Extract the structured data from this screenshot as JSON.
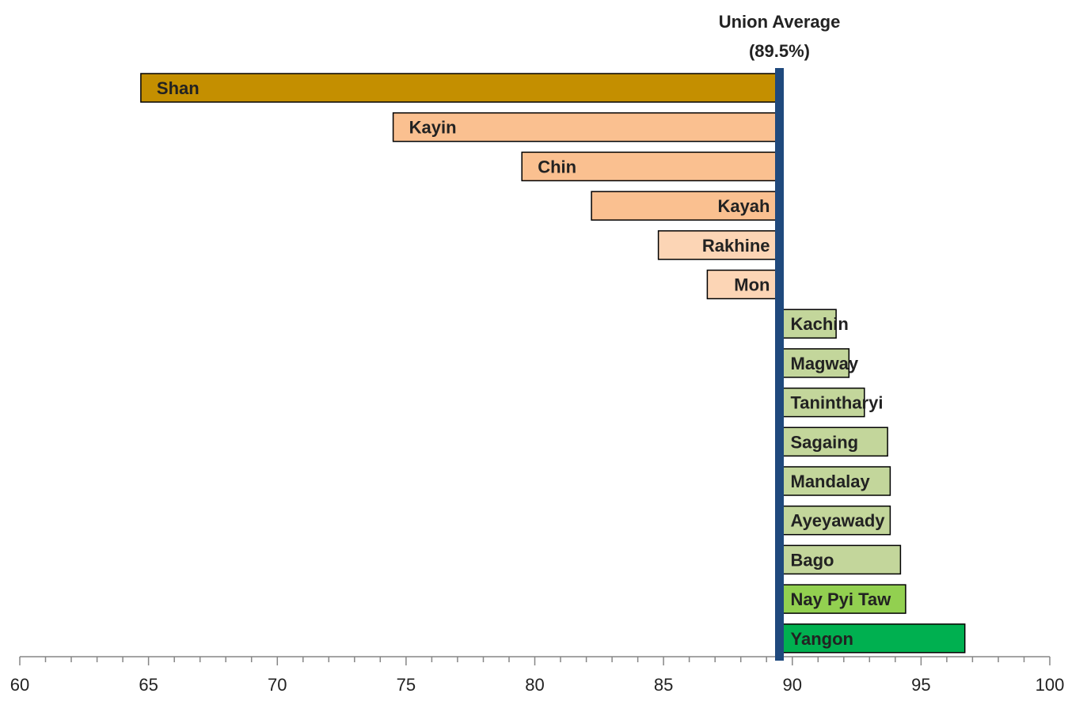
{
  "chart_data": {
    "type": "bar",
    "orientation": "horizontal",
    "reference": 89.5,
    "reference_label_line1": "Union Average",
    "reference_label_line2": "(89.5%)",
    "reference_color": "#1f497d",
    "xlim": [
      60,
      100
    ],
    "xticks": [
      60,
      65,
      70,
      75,
      80,
      85,
      90,
      95,
      100
    ],
    "minor_tick_step": 1,
    "xlabel": "",
    "ylabel": "",
    "grid": false,
    "categories": [
      "Shan",
      "Kayin",
      "Chin",
      "Kayah",
      "Rakhine",
      "Mon",
      "Kachin",
      "Magway",
      "Tanintharyi",
      "Sagaing",
      "Mandalay",
      "Ayeyawady",
      "Bago",
      "Nay Pyi Taw",
      "Yangon"
    ],
    "values": [
      64.7,
      74.5,
      79.5,
      82.2,
      84.8,
      86.7,
      91.7,
      92.2,
      92.8,
      93.7,
      93.8,
      93.8,
      94.2,
      94.4,
      96.7
    ],
    "colors": [
      "#c48f00",
      "#fac090",
      "#fac090",
      "#fac090",
      "#fcd5b5",
      "#fcd5b5",
      "#c3d69b",
      "#c3d69b",
      "#c3d69b",
      "#c3d69b",
      "#c3d69b",
      "#c3d69b",
      "#c3d69b",
      "#92d050",
      "#00b050"
    ]
  }
}
